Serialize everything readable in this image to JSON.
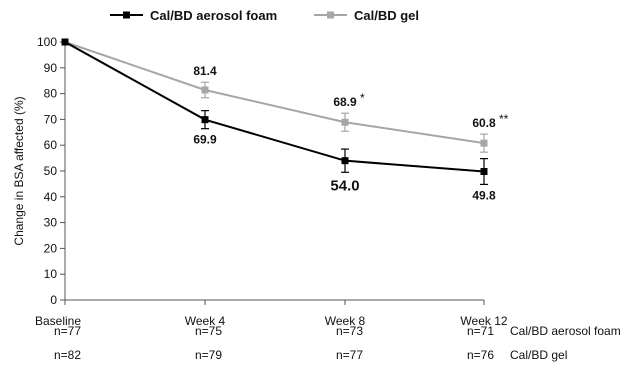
{
  "chart_data": {
    "type": "line",
    "categories": [
      "Baseline",
      "Week 4",
      "Week 8",
      "Week 12"
    ],
    "ylabel": "Change in BSA affected (%)",
    "ylim": [
      0,
      100
    ],
    "yticks": [
      0,
      10,
      20,
      30,
      40,
      50,
      60,
      70,
      80,
      90,
      100
    ],
    "legend_position": "top",
    "series": [
      {
        "name": "Cal/BD aerosol foam",
        "color": "#000000",
        "values": [
          100,
          69.9,
          54.0,
          49.8
        ],
        "errors": [
          0,
          3.5,
          4.5,
          5.0
        ],
        "labels": [
          "",
          "69.9",
          "54.0",
          "49.8"
        ],
        "label_pos": [
          "",
          "below",
          "below",
          "below"
        ],
        "n": [
          "n=77",
          "n=75",
          "n=73",
          "n=71"
        ]
      },
      {
        "name": "Cal/BD gel",
        "color": "#a6a6a6",
        "values": [
          100,
          81.4,
          68.9,
          60.8
        ],
        "errors": [
          0,
          3.0,
          3.5,
          3.5
        ],
        "labels": [
          "",
          "81.4",
          "68.9",
          "60.8"
        ],
        "label_pos": [
          "",
          "above",
          "above",
          "above"
        ],
        "significance": [
          "",
          "",
          "*",
          "**"
        ],
        "n": [
          "n=82",
          "n=79",
          "n=77",
          "n=76"
        ]
      }
    ]
  }
}
